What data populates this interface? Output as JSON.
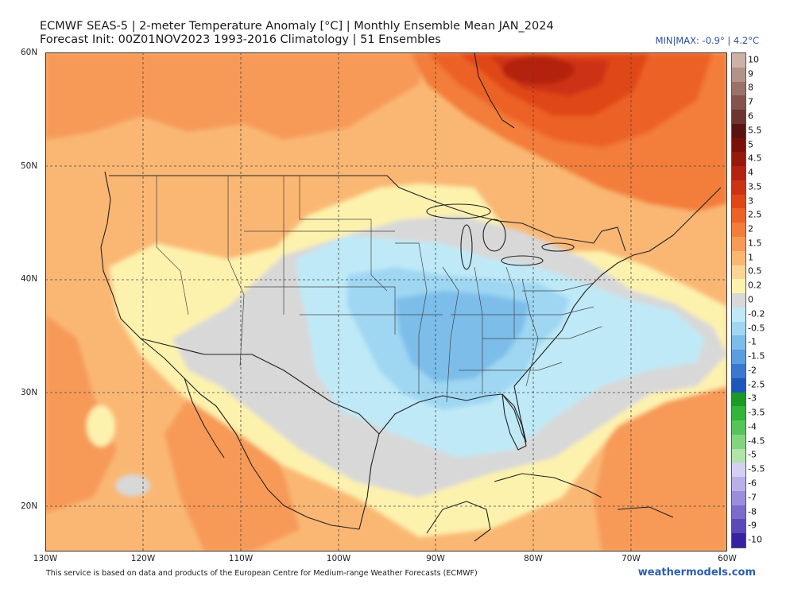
{
  "header": {
    "line1": "ECMWF SEAS-5 | 2-meter Temperature Anomaly [°C] | Monthly Ensemble Mean JAN_2024",
    "line2": "Forecast Init: 00Z01NOV2023     1993-2016 Climatology | 51 Ensembles",
    "minmax": "MIN|MAX: -0.9° | 4.2°C"
  },
  "map": {
    "lat_labels": [
      "60N",
      "50N",
      "40N",
      "30N",
      "20N"
    ],
    "lon_labels": [
      "130W",
      "120W",
      "110W",
      "100W",
      "90W",
      "80W",
      "70W",
      "60W"
    ],
    "extent": {
      "lon": [
        -130,
        -60
      ],
      "lat": [
        16,
        60
      ]
    }
  },
  "legend": {
    "entries": [
      {
        "label": "10",
        "color": "#cbb1a8"
      },
      {
        "label": "9",
        "color": "#b39389"
      },
      {
        "label": "8",
        "color": "#9a7269"
      },
      {
        "label": "7",
        "color": "#84544c"
      },
      {
        "label": "6",
        "color": "#6c3530"
      },
      {
        "label": "5.5",
        "color": "#5a1410"
      },
      {
        "label": "5",
        "color": "#7a1208"
      },
      {
        "label": "4.5",
        "color": "#951a0b"
      },
      {
        "label": "4",
        "color": "#b3230f"
      },
      {
        "label": "3.5",
        "color": "#cc3312"
      },
      {
        "label": "3",
        "color": "#e04716"
      },
      {
        "label": "2.5",
        "color": "#ec6227"
      },
      {
        "label": "2",
        "color": "#f37d3b"
      },
      {
        "label": "1.5",
        "color": "#f79a58"
      },
      {
        "label": "1",
        "color": "#fab774"
      },
      {
        "label": "0.5",
        "color": "#fcd595"
      },
      {
        "label": "0.2",
        "color": "#fdf2ad"
      },
      {
        "label": "0",
        "color": "#d8d8d8"
      },
      {
        "label": "-0.2",
        "color": "#bfe9f7"
      },
      {
        "label": "-0.5",
        "color": "#9fd7f3"
      },
      {
        "label": "-1",
        "color": "#7cbdea"
      },
      {
        "label": "-1.5",
        "color": "#5a9ee0"
      },
      {
        "label": "-2",
        "color": "#3a78d0"
      },
      {
        "label": "-2.5",
        "color": "#1d57b9"
      },
      {
        "label": "-3",
        "color": "#1b9a25"
      },
      {
        "label": "-3.5",
        "color": "#33b43b"
      },
      {
        "label": "-4",
        "color": "#56c45a"
      },
      {
        "label": "-4.5",
        "color": "#82d47f"
      },
      {
        "label": "-5",
        "color": "#b0e4a8"
      },
      {
        "label": "-5.5",
        "color": "#d4d0f2"
      },
      {
        "label": "-6",
        "color": "#b8b0e8"
      },
      {
        "label": "-7",
        "color": "#9a8ddc"
      },
      {
        "label": "-8",
        "color": "#7b6bcc"
      },
      {
        "label": "-9",
        "color": "#5c49b9"
      },
      {
        "label": "-10",
        "color": "#3622a0"
      }
    ]
  },
  "footer": {
    "note": "This service is based on data and products of the European Centre for Medium-range Weather Forecasts (ECMWF)",
    "brand": "weathermodels.com"
  }
}
